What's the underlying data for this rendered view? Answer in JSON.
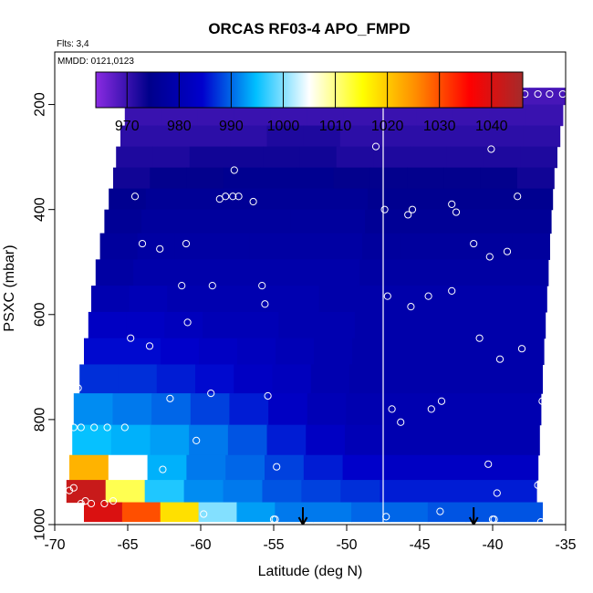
{
  "chart_data": {
    "type": "heatmap",
    "title": "ORCAS RF03-4 APO_FMPD",
    "annotation_flights": "Flts: 3,4",
    "annotation_dates": "MMDD: 0121,0123",
    "xlabel": "Latitude (deg N)",
    "ylabel": "PSXC (mbar)",
    "xlim": [
      -70,
      -35
    ],
    "ylim": [
      1000,
      100
    ],
    "x_ticks": [
      -70,
      -65,
      -60,
      -55,
      -50,
      -45,
      -40,
      -35
    ],
    "y_ticks": [
      200,
      400,
      600,
      800,
      1000
    ],
    "colorbar": {
      "range": [
        964,
        1046
      ],
      "ticks": [
        970,
        980,
        990,
        1000,
        1010,
        1020,
        1030,
        1040
      ],
      "colors": [
        "#8a2be2",
        "#00008b",
        "#0000cd",
        "#00bfff",
        "#ffffff",
        "#ffff00",
        "#ff8c00",
        "#ff0000",
        "#a52a2a"
      ]
    },
    "separator_latitude": -47.5,
    "arrow_latitudes": [
      -53,
      -41.3
    ],
    "layers": [
      {
        "p": 180,
        "start": -64.9,
        "end": -35,
        "values": [
          969,
          969,
          969,
          969,
          969,
          969,
          969,
          969,
          969,
          969,
          969,
          969
        ]
      },
      {
        "p": 220,
        "start": -65.2,
        "end": -35.2,
        "values": [
          970,
          970,
          970,
          970,
          970,
          970,
          970,
          970,
          970,
          970,
          970,
          970
        ]
      },
      {
        "p": 260,
        "start": -65.5,
        "end": -35.4,
        "values": [
          971,
          971,
          971,
          971,
          972,
          972,
          971,
          971,
          971,
          971,
          971,
          971
        ]
      },
      {
        "p": 300,
        "start": -65.8,
        "end": -35.6,
        "values": [
          972,
          972,
          973,
          973,
          973,
          973,
          972,
          972,
          972,
          972,
          972,
          972
        ]
      },
      {
        "p": 340,
        "start": -66.0,
        "end": -35.8,
        "values": [
          973,
          974,
          974,
          975,
          975,
          975,
          974,
          974,
          974,
          974,
          974,
          973
        ]
      },
      {
        "p": 380,
        "start": -66.3,
        "end": -35.9,
        "values": [
          975,
          976,
          976,
          976,
          976,
          976,
          976,
          975,
          975,
          975,
          975,
          975
        ]
      },
      {
        "p": 420,
        "start": -66.6,
        "end": -36.0,
        "values": [
          976,
          977,
          977,
          977,
          977,
          977,
          977,
          976,
          976,
          976,
          976,
          976
        ]
      },
      {
        "p": 470,
        "start": -66.9,
        "end": -36.1,
        "values": [
          977,
          978,
          978,
          978,
          978,
          978,
          978,
          977,
          977,
          977,
          977,
          977
        ]
      },
      {
        "p": 520,
        "start": -67.2,
        "end": -36.2,
        "values": [
          978,
          979,
          979,
          979,
          979,
          979,
          979,
          978,
          978,
          978,
          978,
          978
        ]
      },
      {
        "p": 570,
        "start": -67.5,
        "end": -36.3,
        "values": [
          980,
          981,
          980,
          980,
          980,
          980,
          979,
          979,
          979,
          979,
          979,
          979
        ]
      },
      {
        "p": 620,
        "start": -67.7,
        "end": -36.4,
        "values": [
          983,
          983,
          982,
          981,
          981,
          980,
          980,
          979,
          979,
          979,
          979,
          979
        ]
      },
      {
        "p": 670,
        "start": -68.0,
        "end": -36.5,
        "values": [
          985,
          985,
          984,
          983,
          982,
          981,
          980,
          979,
          979,
          979,
          979,
          979
        ]
      },
      {
        "p": 720,
        "start": -68.3,
        "end": -36.6,
        "values": [
          987,
          987,
          986,
          985,
          983,
          982,
          980,
          979,
          979,
          979,
          979,
          979
        ]
      },
      {
        "p": 780,
        "start": -68.7,
        "end": -36.7,
        "values": [
          992,
          991,
          990,
          988,
          986,
          983,
          981,
          980,
          980,
          980,
          980,
          980
        ]
      },
      {
        "p": 840,
        "start": -68.8,
        "end": -36.8,
        "values": [
          995,
          994,
          993,
          991,
          989,
          986,
          983,
          981,
          980,
          980,
          980,
          980
        ]
      },
      {
        "p": 895,
        "start": -69.0,
        "end": -36.9,
        "values": [
          1022,
          1005,
          994,
          991,
          990,
          988,
          986,
          984,
          983,
          983,
          983,
          983
        ]
      },
      {
        "p": 935,
        "start": -69.2,
        "end": -37.0,
        "values": [
          1042,
          1012,
          996,
          992,
          991,
          989,
          988,
          987,
          986,
          986,
          986,
          986
        ]
      },
      {
        "p": 980,
        "start": -68.0,
        "end": -36.6,
        "values": [
          1040,
          1030,
          1018,
          1000,
          993,
          991,
          991,
          990,
          990,
          989,
          989,
          989
        ]
      }
    ],
    "points": [
      [
        -64.9,
        180
      ],
      [
        -62.5,
        180
      ],
      [
        -59.2,
        180
      ],
      [
        -58.9,
        180
      ],
      [
        -57.8,
        180
      ],
      [
        -57.5,
        180
      ],
      [
        -56.6,
        180
      ],
      [
        -55.9,
        180
      ],
      [
        -50.7,
        180
      ],
      [
        -50.1,
        180
      ],
      [
        -49.6,
        180
      ],
      [
        -49.0,
        180
      ],
      [
        -48.7,
        180
      ],
      [
        -48.4,
        182
      ],
      [
        -47.8,
        180
      ],
      [
        -39.4,
        185
      ],
      [
        -38.6,
        180
      ],
      [
        -37.8,
        180
      ],
      [
        -36.9,
        180
      ],
      [
        -36.1,
        180
      ],
      [
        -35.2,
        180
      ],
      [
        -48.0,
        280
      ],
      [
        -40.1,
        285
      ],
      [
        -57.7,
        325
      ],
      [
        -64.5,
        375
      ],
      [
        -58.7,
        380
      ],
      [
        -58.3,
        375
      ],
      [
        -57.8,
        375
      ],
      [
        -57.4,
        375
      ],
      [
        -56.4,
        385
      ],
      [
        -47.4,
        400
      ],
      [
        -45.8,
        410
      ],
      [
        -45.5,
        400
      ],
      [
        -42.8,
        390
      ],
      [
        -42.5,
        405
      ],
      [
        -38.3,
        375
      ],
      [
        -35.0,
        390
      ],
      [
        -64.0,
        465
      ],
      [
        -62.8,
        475
      ],
      [
        -61.0,
        465
      ],
      [
        -41.3,
        465
      ],
      [
        -40.2,
        490
      ],
      [
        -39.0,
        480
      ],
      [
        -61.3,
        545
      ],
      [
        -59.2,
        545
      ],
      [
        -55.8,
        545
      ],
      [
        -55.6,
        580
      ],
      [
        -47.2,
        565
      ],
      [
        -45.6,
        585
      ],
      [
        -44.4,
        565
      ],
      [
        -42.8,
        555
      ],
      [
        -35.6,
        552
      ],
      [
        -35.1,
        570
      ],
      [
        -60.9,
        615
      ],
      [
        -64.8,
        645
      ],
      [
        -63.5,
        660
      ],
      [
        -40.9,
        645
      ],
      [
        -39.5,
        685
      ],
      [
        -38.0,
        665
      ],
      [
        -62.1,
        760
      ],
      [
        -59.3,
        750
      ],
      [
        -55.4,
        755
      ],
      [
        -46.9,
        780
      ],
      [
        -46.3,
        805
      ],
      [
        -44.2,
        780
      ],
      [
        -43.5,
        765
      ],
      [
        -36.6,
        765
      ],
      [
        -68.4,
        740
      ],
      [
        -69.3,
        815
      ],
      [
        -68.7,
        815
      ],
      [
        -68.2,
        815
      ],
      [
        -67.3,
        815
      ],
      [
        -66.4,
        815
      ],
      [
        -65.2,
        815
      ],
      [
        -60.3,
        840
      ],
      [
        -64.9,
        885
      ],
      [
        -62.6,
        895
      ],
      [
        -54.8,
        890
      ],
      [
        -40.3,
        885
      ],
      [
        -39.7,
        940
      ],
      [
        -36.9,
        925
      ],
      [
        -69.0,
        935
      ],
      [
        -68.7,
        930
      ],
      [
        -68.2,
        960
      ],
      [
        -67.9,
        955
      ],
      [
        -67.5,
        960
      ],
      [
        -66.6,
        960
      ],
      [
        -66.0,
        955
      ],
      [
        -59.8,
        980
      ],
      [
        -55.0,
        990
      ],
      [
        -54.9,
        990
      ],
      [
        -47.3,
        985
      ],
      [
        -43.6,
        975
      ],
      [
        -40.0,
        990
      ],
      [
        -39.9,
        990
      ],
      [
        -36.7,
        995
      ]
    ]
  }
}
